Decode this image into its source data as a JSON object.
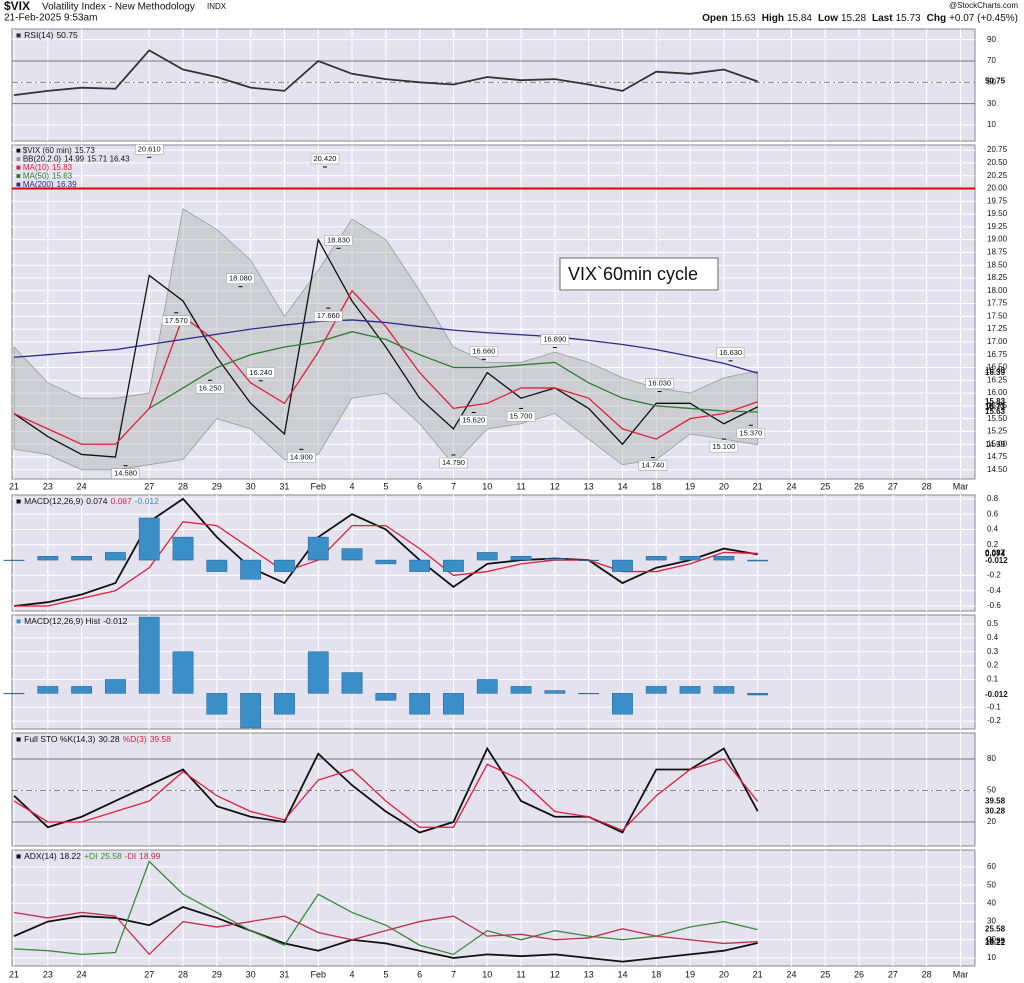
{
  "header": {
    "symbol": "$VIX",
    "name": "Volatility Index - New Methodology",
    "exchange": "INDX",
    "date": "21-Feb-2025 9:53am",
    "source": "@StockCharts.com",
    "quote": [
      {
        "label": "Open",
        "value": 15.63
      },
      {
        "label": "High",
        "value": 15.84
      },
      {
        "label": "Low",
        "value": 15.28
      },
      {
        "label": "Last",
        "value": 15.73
      }
    ],
    "chg_label": "Chg",
    "chg": "+0.07 (+0.45%)"
  },
  "chart_data": {
    "type": "panels",
    "x": [
      0,
      1,
      2,
      3,
      4,
      5,
      6,
      7,
      8,
      9,
      10,
      11,
      12,
      13,
      14,
      15,
      16,
      17,
      18,
      19,
      20,
      21,
      22
    ],
    "xlim": [
      -0.06,
      28.43
    ],
    "xticks": [
      {
        "value": 0,
        "label": "21"
      },
      {
        "value": 1,
        "label": "23"
      },
      {
        "value": 2,
        "label": "24"
      },
      {
        "value": 4,
        "label": "27"
      },
      {
        "value": 5,
        "label": "28"
      },
      {
        "value": 6,
        "label": "29"
      },
      {
        "value": 7,
        "label": "30"
      },
      {
        "value": 8,
        "label": "31"
      },
      {
        "value": 9,
        "label": "Feb"
      },
      {
        "value": 10,
        "label": "4"
      },
      {
        "value": 11,
        "label": "5"
      },
      {
        "value": 12,
        "label": "6"
      },
      {
        "value": 13,
        "label": "7"
      },
      {
        "value": 14,
        "label": "10"
      },
      {
        "value": 15,
        "label": "11"
      },
      {
        "value": 16,
        "label": "12"
      },
      {
        "value": 17,
        "label": "13"
      },
      {
        "value": 18,
        "label": "14"
      },
      {
        "value": 19,
        "label": "18"
      },
      {
        "value": 20,
        "label": "19"
      },
      {
        "value": 21,
        "label": "20"
      },
      {
        "value": 22,
        "label": "21"
      },
      {
        "value": 23,
        "label": "24"
      },
      {
        "value": 24,
        "label": "25"
      },
      {
        "value": 25,
        "label": "26"
      },
      {
        "value": 26,
        "label": "27"
      },
      {
        "value": 27,
        "label": "28"
      },
      {
        "value": 28,
        "label": "Mar"
      }
    ],
    "grid": true,
    "panels": [
      {
        "type": "line",
        "ylim": [
          -5,
          100
        ],
        "yticks": [
          10,
          30,
          50,
          70,
          90
        ],
        "levels": [
          70,
          30
        ],
        "midline": 50,
        "series": [
          {
            "name": "RSI(14)",
            "color": "#333333",
            "last": 50.75,
            "values": [
              38,
              42,
              45,
              44,
              80,
              62,
              55,
              45,
              42,
              70,
              58,
              53,
              50,
              48,
              55,
              52,
              53,
              48,
              42,
              60,
              58,
              62,
              50.75
            ]
          }
        ]
      },
      {
        "type": "line",
        "ylim": [
          14.32,
          20.85
        ],
        "yticks": [
          {
            "value": 14.5,
            "label": "14.50"
          },
          {
            "value": 14.75,
            "label": "14.75"
          },
          {
            "value": 15,
            "label": "15.00"
          },
          {
            "value": 15.25,
            "label": "15.25"
          },
          {
            "value": 15.5,
            "label": "15.50"
          },
          {
            "value": 15.75,
            "label": "15.75"
          },
          {
            "value": 16,
            "label": "16.00"
          },
          {
            "value": 16.25,
            "label": "16.25"
          },
          {
            "value": 16.5,
            "label": "16.50"
          },
          {
            "value": 16.75,
            "label": "16.75"
          },
          {
            "value": 17,
            "label": "17.00"
          },
          {
            "value": 17.25,
            "label": "17.25"
          },
          {
            "value": 17.5,
            "label": "17.50"
          },
          {
            "value": 17.75,
            "label": "17.75"
          },
          {
            "value": 18,
            "label": "18.00"
          },
          {
            "value": 18.25,
            "label": "18.25"
          },
          {
            "value": 18.5,
            "label": "18.50"
          },
          {
            "value": 18.75,
            "label": "18.75"
          },
          {
            "value": 19,
            "label": "19.00"
          },
          {
            "value": 19.25,
            "label": "19.25"
          },
          {
            "value": 19.5,
            "label": "19.50"
          },
          {
            "value": 19.75,
            "label": "19.75"
          },
          {
            "value": 20,
            "label": "20.00"
          },
          {
            "value": 20.25,
            "label": "20.25"
          },
          {
            "value": 20.5,
            "label": "20.50"
          },
          {
            "value": 20.75,
            "label": "20.75"
          }
        ],
        "hline": {
          "value": 20,
          "color": "#e00000"
        },
        "band": {
          "name": "BB(20,2.0)",
          "color": "#9a9a9a",
          "last": [
            14.99,
            15.71,
            16.43
          ],
          "upper": [
            16.9,
            16.2,
            15.9,
            15.9,
            16.0,
            19.6,
            19.2,
            18.6,
            17.5,
            18.4,
            19.4,
            19.0,
            18.0,
            16.9,
            16.6,
            16.6,
            16.8,
            16.6,
            16.3,
            16.1,
            16.0,
            16.3,
            16.43
          ],
          "lower": [
            14.9,
            14.8,
            14.5,
            14.5,
            14.6,
            14.7,
            15.5,
            15.3,
            14.7,
            14.8,
            15.9,
            16.0,
            15.4,
            14.6,
            15.3,
            15.4,
            15.6,
            15.1,
            14.6,
            14.7,
            15.2,
            15.1,
            14.99
          ]
        },
        "series": [
          {
            "name": "$VIX (60 min)",
            "color": "#111111",
            "last": 15.73,
            "values": [
              15.6,
              15.15,
              14.8,
              14.75,
              18.3,
              17.8,
              16.7,
              15.8,
              15.2,
              19.0,
              17.8,
              16.9,
              15.9,
              15.3,
              16.4,
              15.9,
              16.1,
              15.7,
              15.0,
              15.8,
              15.8,
              15.4,
              15.73
            ]
          },
          {
            "name": "MA(10)",
            "color": "#e0203a",
            "last": 15.83,
            "values": [
              15.6,
              15.3,
              15.0,
              15.0,
              15.7,
              17.5,
              17.0,
              16.2,
              15.8,
              16.8,
              18.0,
              17.3,
              16.4,
              15.7,
              15.8,
              16.1,
              16.1,
              15.9,
              15.3,
              15.1,
              15.5,
              15.6,
              15.83
            ]
          },
          {
            "name": "MA(50)",
            "color": "#2e7d32",
            "last": 15.63,
            "values": [
              null,
              null,
              null,
              null,
              15.7,
              16.1,
              16.5,
              16.75,
              16.9,
              17.0,
              17.2,
              17.05,
              16.75,
              16.5,
              16.5,
              16.55,
              16.6,
              16.2,
              15.9,
              15.75,
              15.7,
              15.65,
              15.63
            ]
          },
          {
            "name": "MA(200)",
            "color": "#2a2a8a",
            "last": 16.39,
            "values": [
              16.7,
              16.75,
              16.8,
              16.85,
              16.95,
              17.05,
              17.15,
              17.25,
              17.33,
              17.4,
              17.43,
              17.38,
              17.3,
              17.23,
              17.18,
              17.14,
              17.1,
              17.03,
              16.95,
              16.85,
              16.72,
              16.58,
              16.39
            ]
          }
        ],
        "annotations": [
          {
            "x": 4,
            "value": 20.61,
            "label": "20.610"
          },
          {
            "x": 4.8,
            "value": 17.57,
            "label": "17.570"
          },
          {
            "x": 6.7,
            "value": 18.08,
            "label": "18.080"
          },
          {
            "x": 5.8,
            "value": 16.25,
            "label": "16.250"
          },
          {
            "x": 7.3,
            "value": 16.24,
            "label": "16.240"
          },
          {
            "x": 3.3,
            "value": 14.58,
            "label": "14.580"
          },
          {
            "x": 8.5,
            "value": 14.9,
            "label": "14.900"
          },
          {
            "x": 9.2,
            "value": 20.42,
            "label": "20.420"
          },
          {
            "x": 9.6,
            "value": 18.83,
            "label": "18.830"
          },
          {
            "x": 9.3,
            "value": 17.66,
            "label": "17.660"
          },
          {
            "x": 13.9,
            "value": 16.66,
            "label": "16.660"
          },
          {
            "x": 13.6,
            "value": 15.62,
            "label": "15.620"
          },
          {
            "x": 13.0,
            "value": 14.79,
            "label": "14.790"
          },
          {
            "x": 15.0,
            "value": 15.7,
            "label": "15.700"
          },
          {
            "x": 16.0,
            "value": 16.89,
            "label": "16.890"
          },
          {
            "x": 19.1,
            "value": 16.03,
            "label": "16.030"
          },
          {
            "x": 18.9,
            "value": 14.74,
            "label": "14.740"
          },
          {
            "x": 21.0,
            "value": 15.1,
            "label": "15.100"
          },
          {
            "x": 21.2,
            "value": 16.63,
            "label": "16.630"
          },
          {
            "x": 21.8,
            "value": 15.37,
            "label": "15.370"
          }
        ],
        "note": "VIX`60min cycle"
      },
      {
        "type": "line",
        "ylim": [
          -0.665,
          0.85
        ],
        "yticks": [
          -0.6,
          -0.4,
          -0.2,
          0.2,
          0.4,
          0.6,
          0.8
        ],
        "series": [
          {
            "name": "MACD(12,26,9)",
            "color": "#111111",
            "last": 0.074,
            "values": [
              -0.6,
              -0.55,
              -0.45,
              -0.3,
              0.5,
              0.8,
              0.3,
              -0.1,
              -0.3,
              0.3,
              0.6,
              0.4,
              0.0,
              -0.35,
              -0.05,
              0.0,
              0.02,
              0.0,
              -0.3,
              -0.1,
              0.0,
              0.15,
              0.074
            ]
          },
          {
            "color": "#e0203a",
            "last": 0.087,
            "values": [
              -0.6,
              -0.6,
              -0.5,
              -0.4,
              -0.1,
              0.5,
              0.45,
              0.15,
              -0.15,
              0.0,
              0.45,
              0.45,
              0.15,
              -0.2,
              -0.15,
              -0.05,
              0.0,
              0.0,
              -0.15,
              -0.15,
              -0.05,
              0.1,
              0.087
            ]
          },
          {
            "kind": "bar",
            "color": "#3a8fc8",
            "last": -0.012,
            "values": [
              0.0,
              0.05,
              0.05,
              0.1,
              0.55,
              0.3,
              -0.15,
              -0.25,
              -0.15,
              0.3,
              0.15,
              -0.05,
              -0.15,
              -0.15,
              0.1,
              0.05,
              0.02,
              0.0,
              -0.15,
              0.05,
              0.05,
              0.05,
              -0.012
            ]
          }
        ]
      },
      {
        "type": "line",
        "ylim": [
          -0.257,
          0.565
        ],
        "yticks": [
          -0.2,
          -0.1,
          0.1,
          0.2,
          0.3,
          0.4,
          0.5
        ],
        "series": [
          {
            "name": "MACD(12,26,9) Hist",
            "kind": "bar",
            "color": "#3a8fc8",
            "last": -0.012,
            "values": [
              0.0,
              0.05,
              0.05,
              0.1,
              0.55,
              0.3,
              -0.15,
              -0.25,
              -0.15,
              0.3,
              0.15,
              -0.05,
              -0.15,
              -0.15,
              0.1,
              0.05,
              0.02,
              0.0,
              -0.15,
              0.05,
              0.05,
              0.05,
              -0.012
            ]
          }
        ]
      },
      {
        "type": "line",
        "ylim": [
          -2.9,
          104.8
        ],
        "yticks": [
          20,
          50,
          80
        ],
        "levels": [
          80,
          20
        ],
        "midline": 50,
        "series": [
          {
            "name": "Full STO %K(14,3)",
            "color": "#111111",
            "last": 30.28,
            "values": [
              45,
              15,
              25,
              40,
              55,
              70,
              35,
              25,
              20,
              85,
              55,
              30,
              10,
              20,
              90,
              40,
              25,
              25,
              10,
              70,
              70,
              90,
              30.28
            ]
          },
          {
            "name": "%D(3)",
            "color": "#e0203a",
            "last": 39.58,
            "values": [
              40,
              20,
              20,
              30,
              40,
              68,
              45,
              30,
              22,
              60,
              70,
              40,
              15,
              15,
              75,
              60,
              30,
              25,
              12,
              45,
              70,
              80,
              39.58
            ]
          }
        ]
      },
      {
        "type": "line",
        "ylim": [
          5.6,
          69.3
        ],
        "yticks": [
          10,
          20,
          30,
          40,
          50,
          60
        ],
        "series": [
          {
            "name": "ADX(14)",
            "color": "#111111",
            "last": 18.22,
            "values": [
              22,
              30,
              33,
              32,
              28,
              38,
              32,
              25,
              18,
              14,
              20,
              18,
              14,
              10,
              12,
              11,
              12,
              10,
              8,
              10,
              12,
              14,
              18.22
            ]
          },
          {
            "name": "+DI",
            "color": "#3a8a3a",
            "last": 25.58,
            "values": [
              15,
              14,
              12,
              13,
              63,
              45,
              35,
              25,
              17,
              45,
              35,
              28,
              17,
              12,
              25,
              20,
              25,
              22,
              20,
              22,
              27,
              30,
              25.58
            ]
          },
          {
            "name": "-DI",
            "color": "#c0304a",
            "last": 18.99,
            "values": [
              35,
              32,
              35,
              33,
              12,
              30,
              27,
              30,
              33,
              24,
              20,
              25,
              30,
              33,
              22,
              23,
              20,
              21,
              26,
              22,
              20,
              18,
              18.99
            ]
          }
        ]
      }
    ]
  }
}
